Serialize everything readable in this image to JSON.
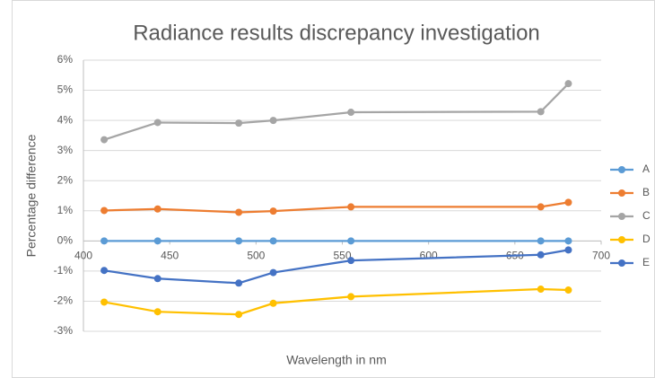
{
  "chart_data": {
    "type": "line",
    "title": "Radiance results discrepancy investigation",
    "x_label": "Wavelength in nm",
    "y_label": "Percentage difference",
    "x": [
      412,
      443,
      490,
      510,
      555,
      665,
      681
    ],
    "series": [
      {
        "name": "A",
        "color": "#5b9bd5",
        "values": [
          0,
          0,
          0,
          0,
          0,
          0,
          0
        ]
      },
      {
        "name": "B",
        "color": "#ed7d31",
        "values": [
          1.01,
          1.06,
          0.95,
          0.99,
          1.13,
          1.13,
          1.28
        ]
      },
      {
        "name": "C",
        "color": "#a5a5a5",
        "values": [
          3.36,
          3.93,
          3.91,
          4.0,
          4.27,
          4.29,
          5.22
        ]
      },
      {
        "name": "D",
        "color": "#ffc000",
        "values": [
          -2.03,
          -2.35,
          -2.44,
          -2.07,
          -1.85,
          -1.6,
          -1.63
        ]
      },
      {
        "name": "E",
        "color": "#4472c4",
        "values": [
          -0.98,
          -1.25,
          -1.4,
          -1.05,
          -0.65,
          -0.46,
          -0.3
        ]
      }
    ],
    "xlim": [
      400,
      700
    ],
    "xticks": [
      400,
      450,
      500,
      550,
      600,
      650,
      700
    ],
    "ylim": [
      -3,
      6
    ],
    "yticks": [
      {
        "value": -3,
        "label": "-3%"
      },
      {
        "value": -2,
        "label": "-2%"
      },
      {
        "value": -1,
        "label": "-1%"
      },
      {
        "value": 0,
        "label": "0%"
      },
      {
        "value": 1,
        "label": "1%"
      },
      {
        "value": 2,
        "label": "2%"
      },
      {
        "value": 3,
        "label": "3%"
      },
      {
        "value": 4,
        "label": "4%"
      },
      {
        "value": 5,
        "label": "5%"
      },
      {
        "value": 6,
        "label": "6%"
      }
    ],
    "grid": true,
    "legend": "right"
  }
}
